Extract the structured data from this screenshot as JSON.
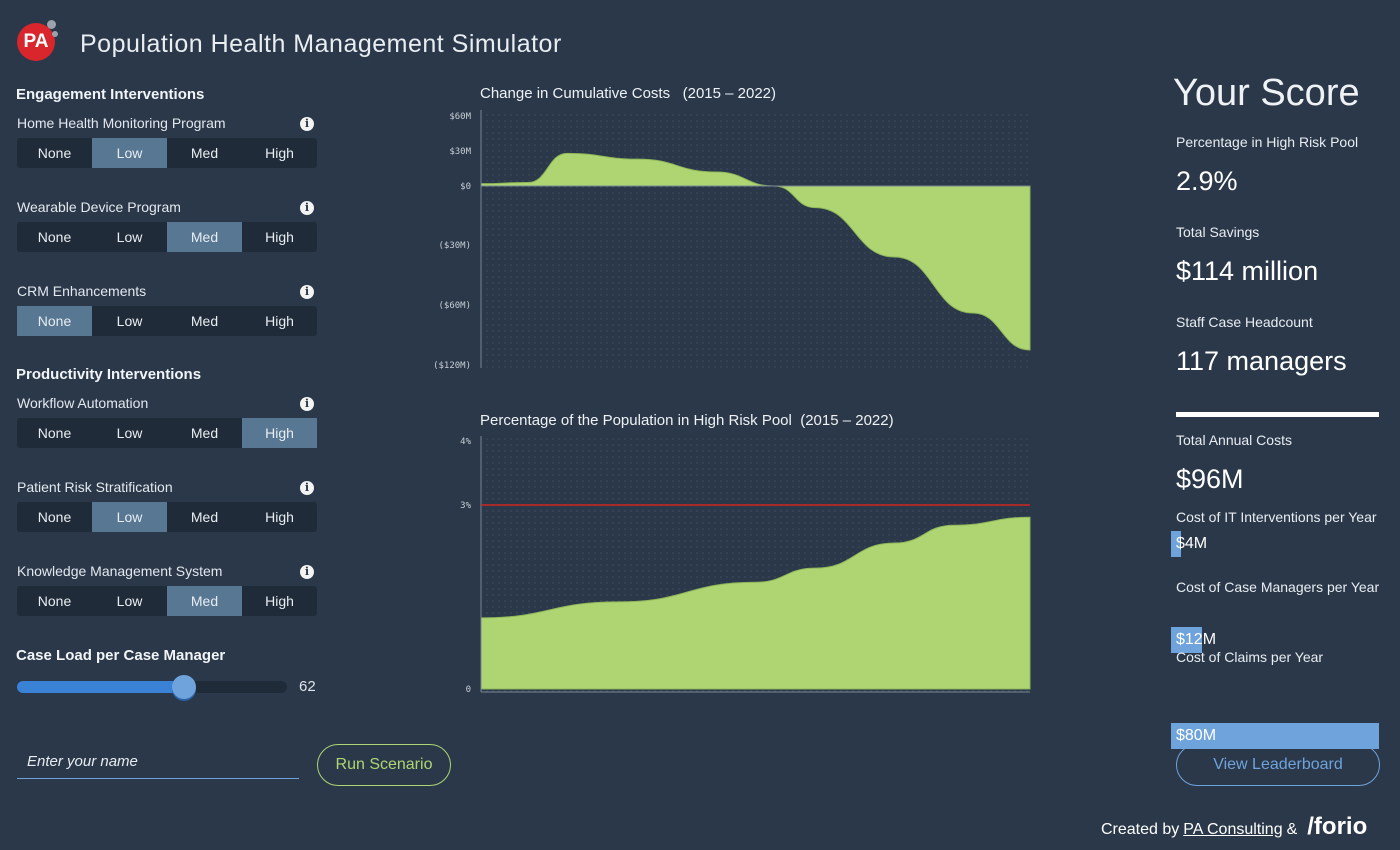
{
  "header": {
    "logo_text": "PA",
    "title": "Population Health Management Simulator"
  },
  "sections": {
    "engagement": "Engagement Interventions",
    "productivity": "Productivity Interventions"
  },
  "options": [
    "None",
    "Low",
    "Med",
    "High"
  ],
  "controls": [
    {
      "label": "Home Health Monitoring Program",
      "selected": "Low"
    },
    {
      "label": "Wearable Device Program",
      "selected": "Med"
    },
    {
      "label": "CRM Enhancements",
      "selected": "None"
    },
    {
      "label": "Workflow Automation",
      "selected": "High"
    },
    {
      "label": "Patient Risk Stratification",
      "selected": "Low"
    },
    {
      "label": "Knowledge Management System",
      "selected": "Med"
    }
  ],
  "info_icon": "i",
  "slider": {
    "label": "Case Load per Case Manager",
    "value": "62",
    "fraction": 0.62
  },
  "name_input": {
    "placeholder": "Enter your name",
    "value": ""
  },
  "run_button": "Run Scenario",
  "chart_data": [
    {
      "type": "area",
      "title": "Change in Cumulative Costs",
      "period": "(2015 – 2022)",
      "x": [
        2015,
        2015.6,
        2016.1,
        2017,
        2018,
        2018.74,
        2019.26,
        2020.27,
        2021.27,
        2022
      ],
      "y": [
        2,
        3,
        28,
        23,
        12,
        0,
        -11,
        -36,
        -68,
        -105
      ],
      "ytick_labels": [
        "$60M",
        "$30M",
        "$0",
        "($30M)",
        "($60M)",
        "($120M)"
      ],
      "ytick_values": [
        60,
        30,
        0,
        -30,
        -60,
        -120
      ],
      "grid": "dotted",
      "fill_color": "#aed572"
    },
    {
      "type": "area",
      "title": "Percentage of the Population in High Risk Pool",
      "period": "(2015 – 2022)",
      "x": [
        2015,
        2016.75,
        2018.5,
        2019.26,
        2020.27,
        2021.03,
        2022
      ],
      "y": [
        1.16,
        1.42,
        1.74,
        1.97,
        2.38,
        2.67,
        2.8
      ],
      "ytick_labels": [
        "4%",
        "3%",
        "0"
      ],
      "ytick_values": [
        4,
        3,
        0
      ],
      "threshold": 3,
      "threshold_color": "#d0261f",
      "grid": "dotted",
      "fill_color": "#aed572"
    }
  ],
  "score": {
    "title": "Your Score",
    "metrics": [
      {
        "label": "Percentage in High Risk Pool",
        "value": "2.9%"
      },
      {
        "label": "Total Savings",
        "value": "$114 million"
      },
      {
        "label": "Staff Case Headcount",
        "value": "117 managers"
      }
    ],
    "total_label": "Total Annual Costs",
    "total_value": "$96M",
    "costs": [
      {
        "label": "Cost of IT Interventions per Year",
        "value": "$4M",
        "amount": 4
      },
      {
        "label": "Cost of Case Managers per Year",
        "value": "$12M",
        "amount": 12
      },
      {
        "label": "Cost of Claims per Year",
        "value": "$80M",
        "amount": 80
      }
    ]
  },
  "leaderboard_button": "View Leaderboard",
  "footer": {
    "created_by": "Created by",
    "pa_link": "PA Consulting",
    "amp": "&",
    "forio": "/forio"
  },
  "colors": {
    "background": "#2a3849",
    "selected": "#577793",
    "accent_green": "#aed572",
    "accent_blue": "#6fa3dc"
  }
}
